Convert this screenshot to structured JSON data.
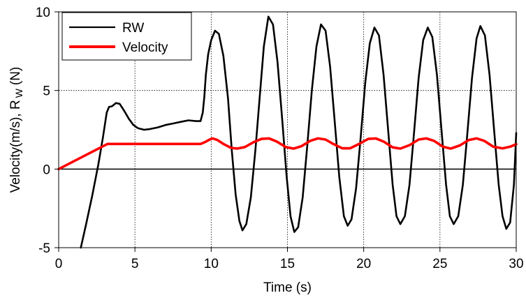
{
  "chart_data": {
    "type": "line",
    "xlabel": "Time (s)",
    "ylabel": "Velocity(m/s), R W (N)",
    "ylabel_parts": {
      "main": "Velocity(m/s), R",
      "sub": "W",
      "tail": "(N)"
    },
    "xlim": [
      0,
      30
    ],
    "ylim": [
      -5,
      10
    ],
    "x_ticks": [
      0,
      5,
      10,
      15,
      20,
      25,
      30
    ],
    "y_ticks": [
      -5,
      0,
      5,
      10
    ],
    "x_tick_labels": [
      "0",
      "5",
      "10",
      "15",
      "20",
      "25",
      "30"
    ],
    "y_tick_labels": [
      "-5",
      "0",
      "5",
      "10"
    ],
    "grid": true,
    "legend": "top-left",
    "series": [
      {
        "name": "RW",
        "color": "#000000",
        "points": [
          [
            1.45,
            -5.0
          ],
          [
            1.8,
            -3.5
          ],
          [
            2.2,
            -1.7
          ],
          [
            2.6,
            0.3
          ],
          [
            2.9,
            2.0
          ],
          [
            3.15,
            3.6
          ],
          [
            3.3,
            3.95
          ],
          [
            3.5,
            4.0
          ],
          [
            3.75,
            4.2
          ],
          [
            4.0,
            4.15
          ],
          [
            4.3,
            3.7
          ],
          [
            4.6,
            3.2
          ],
          [
            4.9,
            2.8
          ],
          [
            5.2,
            2.6
          ],
          [
            5.6,
            2.5
          ],
          [
            6.0,
            2.55
          ],
          [
            6.5,
            2.65
          ],
          [
            7.0,
            2.8
          ],
          [
            7.5,
            2.9
          ],
          [
            8.0,
            3.0
          ],
          [
            8.5,
            3.1
          ],
          [
            9.0,
            3.05
          ],
          [
            9.3,
            3.05
          ],
          [
            9.45,
            3.6
          ],
          [
            9.55,
            4.6
          ],
          [
            9.65,
            6.0
          ],
          [
            9.8,
            7.3
          ],
          [
            10.0,
            8.2
          ],
          [
            10.25,
            8.8
          ],
          [
            10.5,
            8.6
          ],
          [
            10.8,
            7.2
          ],
          [
            11.1,
            4.5
          ],
          [
            11.35,
            1.2
          ],
          [
            11.6,
            -1.6
          ],
          [
            11.85,
            -3.3
          ],
          [
            12.05,
            -3.9
          ],
          [
            12.3,
            -3.5
          ],
          [
            12.6,
            -1.8
          ],
          [
            12.9,
            1.2
          ],
          [
            13.2,
            4.8
          ],
          [
            13.45,
            7.8
          ],
          [
            13.75,
            9.7
          ],
          [
            14.05,
            9.2
          ],
          [
            14.35,
            6.8
          ],
          [
            14.65,
            3.2
          ],
          [
            14.95,
            -0.5
          ],
          [
            15.2,
            -3.0
          ],
          [
            15.45,
            -4.0
          ],
          [
            15.7,
            -3.7
          ],
          [
            16.0,
            -1.8
          ],
          [
            16.3,
            1.5
          ],
          [
            16.6,
            5.0
          ],
          [
            16.9,
            7.8
          ],
          [
            17.2,
            9.2
          ],
          [
            17.5,
            8.8
          ],
          [
            17.8,
            6.5
          ],
          [
            18.1,
            3.0
          ],
          [
            18.4,
            -0.5
          ],
          [
            18.7,
            -3.0
          ],
          [
            18.95,
            -3.6
          ],
          [
            19.2,
            -3.2
          ],
          [
            19.5,
            -1.2
          ],
          [
            19.8,
            2.0
          ],
          [
            20.1,
            5.5
          ],
          [
            20.4,
            8.0
          ],
          [
            20.7,
            9.0
          ],
          [
            21.0,
            8.5
          ],
          [
            21.3,
            6.0
          ],
          [
            21.6,
            2.5
          ],
          [
            21.9,
            -1.0
          ],
          [
            22.15,
            -3.0
          ],
          [
            22.4,
            -3.5
          ],
          [
            22.7,
            -3.0
          ],
          [
            23.0,
            -1.0
          ],
          [
            23.3,
            2.3
          ],
          [
            23.6,
            5.8
          ],
          [
            23.9,
            8.2
          ],
          [
            24.2,
            9.0
          ],
          [
            24.5,
            8.4
          ],
          [
            24.8,
            6.0
          ],
          [
            25.1,
            2.5
          ],
          [
            25.4,
            -1.0
          ],
          [
            25.65,
            -3.0
          ],
          [
            25.9,
            -3.5
          ],
          [
            26.2,
            -3.0
          ],
          [
            26.5,
            -1.0
          ],
          [
            26.8,
            2.3
          ],
          [
            27.1,
            5.8
          ],
          [
            27.4,
            8.3
          ],
          [
            27.65,
            9.1
          ],
          [
            27.95,
            8.5
          ],
          [
            28.25,
            6.0
          ],
          [
            28.55,
            2.5
          ],
          [
            28.85,
            -1.0
          ],
          [
            29.1,
            -3.0
          ],
          [
            29.35,
            -3.8
          ],
          [
            29.6,
            -3.4
          ],
          [
            29.85,
            -1.0
          ],
          [
            30.0,
            2.3
          ]
        ]
      },
      {
        "name": "Velocity",
        "color": "#ff0000",
        "points": [
          [
            0.0,
            0.0
          ],
          [
            3.2,
            1.6
          ],
          [
            9.3,
            1.6
          ],
          [
            9.6,
            1.72
          ],
          [
            9.9,
            1.88
          ],
          [
            10.1,
            1.95
          ],
          [
            10.4,
            1.85
          ],
          [
            10.8,
            1.6
          ],
          [
            11.3,
            1.35
          ],
          [
            11.7,
            1.3
          ],
          [
            12.2,
            1.4
          ],
          [
            12.8,
            1.72
          ],
          [
            13.3,
            1.92
          ],
          [
            13.8,
            1.95
          ],
          [
            14.3,
            1.75
          ],
          [
            14.9,
            1.4
          ],
          [
            15.4,
            1.3
          ],
          [
            15.9,
            1.45
          ],
          [
            16.5,
            1.8
          ],
          [
            17.0,
            1.95
          ],
          [
            17.5,
            1.88
          ],
          [
            18.0,
            1.6
          ],
          [
            18.6,
            1.32
          ],
          [
            19.1,
            1.32
          ],
          [
            19.7,
            1.6
          ],
          [
            20.3,
            1.92
          ],
          [
            20.8,
            1.95
          ],
          [
            21.3,
            1.75
          ],
          [
            21.9,
            1.38
          ],
          [
            22.4,
            1.3
          ],
          [
            23.0,
            1.52
          ],
          [
            23.6,
            1.88
          ],
          [
            24.1,
            1.95
          ],
          [
            24.6,
            1.8
          ],
          [
            25.2,
            1.42
          ],
          [
            25.7,
            1.3
          ],
          [
            26.3,
            1.5
          ],
          [
            26.9,
            1.85
          ],
          [
            27.4,
            1.95
          ],
          [
            27.9,
            1.8
          ],
          [
            28.5,
            1.42
          ],
          [
            29.1,
            1.32
          ],
          [
            29.6,
            1.42
          ],
          [
            30.0,
            1.58
          ]
        ]
      }
    ]
  }
}
